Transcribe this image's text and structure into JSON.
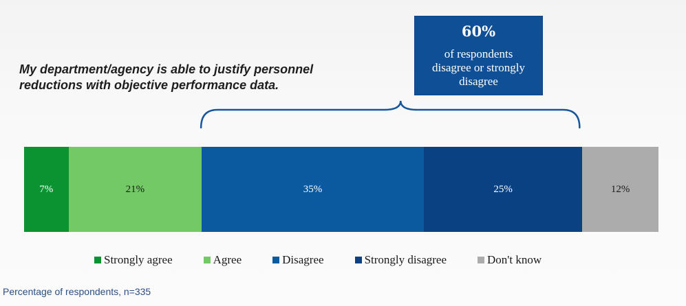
{
  "question": "My department/agency is able to justify personnel reductions with objective performance data.",
  "callout": {
    "value": "60%",
    "text": "of respondents disagree or strongly disagree"
  },
  "footnote": "Percentage of respondents, n=335",
  "chart_data": {
    "type": "bar",
    "orientation": "horizontal-stacked",
    "title": "My department/agency is able to justify personnel reductions with objective performance data.",
    "unit": "%",
    "total": 100,
    "categories": [
      "Strongly agree",
      "Agree",
      "Disagree",
      "Strongly disagree",
      "Don't know"
    ],
    "values": [
      7,
      21,
      35,
      25,
      12
    ],
    "labels": [
      "7%",
      "21%",
      "35%",
      "25%",
      "12%"
    ],
    "colors": [
      "#0a9330",
      "#72c965",
      "#0b5aa0",
      "#0a4183",
      "#acacac"
    ],
    "label_colors": [
      "#ffffff",
      "#1b1b1b",
      "#ffffff",
      "#ffffff",
      "#1b1b1b"
    ],
    "bracket_categories": [
      "Disagree",
      "Strongly disagree"
    ],
    "legend_placement": "bottom"
  }
}
